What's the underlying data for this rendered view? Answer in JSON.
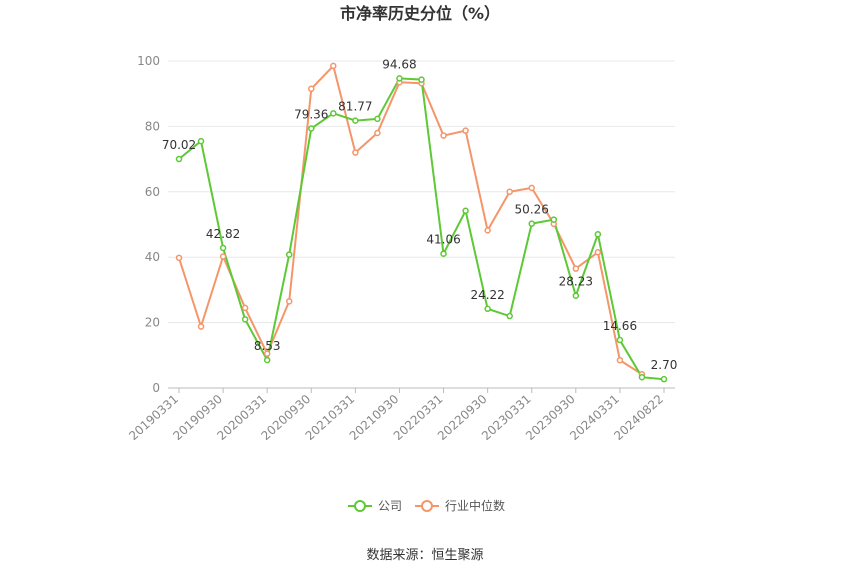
{
  "chart_data": {
    "type": "line",
    "title": "市净率历史分位（%）",
    "source": "数据来源：恒生聚源",
    "xlabel": "",
    "ylabel": "",
    "ylim": [
      0,
      100
    ],
    "yticks": [
      0,
      20,
      40,
      60,
      80,
      100
    ],
    "grid": true,
    "legend_position": "bottom",
    "x": [
      "20190331",
      "20190630",
      "20190930",
      "20191231",
      "20200331",
      "20200630",
      "20200930",
      "20201231",
      "20210331",
      "20210630",
      "20210930",
      "20211231",
      "20220331",
      "20220630",
      "20220930",
      "20221231",
      "20230331",
      "20230630",
      "20230930",
      "20231231",
      "20240331",
      "20240630",
      "20240822"
    ],
    "x_tick_labels": [
      "20190331",
      "20190930",
      "20200331",
      "20200930",
      "20210331",
      "20210930",
      "20220331",
      "20220930",
      "20230331",
      "20230930",
      "20240331",
      "20240822"
    ],
    "series": [
      {
        "name": "公司",
        "color": "#5cc935",
        "values": [
          70.02,
          75.5,
          42.82,
          21.0,
          8.53,
          40.8,
          79.36,
          84.0,
          81.77,
          82.3,
          94.68,
          94.3,
          41.06,
          54.2,
          24.22,
          22.0,
          50.26,
          51.5,
          28.23,
          47.0,
          14.66,
          3.3,
          2.7
        ],
        "labels": {
          "0": "70.02",
          "2": "42.82",
          "4": "8.53",
          "6": "79.36",
          "8": "81.77",
          "10": "94.68",
          "12": "41.06",
          "14": "24.22",
          "16": "50.26",
          "18": "28.23",
          "20": "14.66",
          "22": "2.70"
        }
      },
      {
        "name": "行业中位数",
        "color": "#f4956a",
        "values": [
          39.8,
          18.8,
          40.2,
          24.5,
          10.5,
          26.5,
          91.5,
          98.5,
          72.0,
          78.0,
          93.5,
          93.2,
          77.2,
          78.7,
          48.2,
          60.0,
          61.2,
          50.2,
          36.5,
          41.5,
          8.5,
          4.2,
          null
        ]
      }
    ]
  }
}
